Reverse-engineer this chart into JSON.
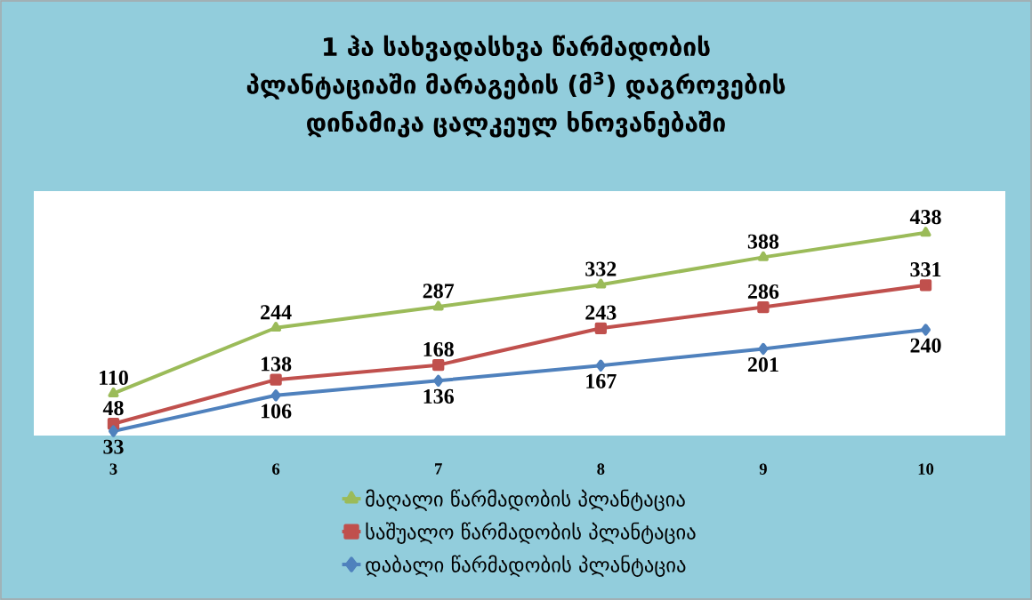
{
  "chart_data": {
    "type": "line",
    "title": "1 ჰა სახვადასხვა წარმადობის პლანტაციაში მარაგების (მ$^{3}$) დაგროვების  დინამიკა ცალკეულ ხნოვანებაში",
    "categories": [
      "3",
      "6",
      "7",
      "8",
      "9",
      "10"
    ],
    "series": [
      {
        "name": "მაღალი წარმადობის პლანტაცია",
        "color": "#9bbb59",
        "marker": "triangle",
        "values": [
          110,
          244,
          287,
          332,
          388,
          438
        ]
      },
      {
        "name": "საშუალო წარმადობის პლანტაცია",
        "color": "#c0504d",
        "marker": "square",
        "values": [
          48,
          138,
          168,
          243,
          286,
          331
        ]
      },
      {
        "name": "დაბალი წარმადობის პლანტაცია",
        "color": "#4f81bd",
        "marker": "diamond",
        "values": [
          33,
          106,
          136,
          167,
          201,
          240
        ]
      }
    ],
    "ylim": [
      24,
      523
    ],
    "data_labels": true,
    "legend": "bottom"
  }
}
